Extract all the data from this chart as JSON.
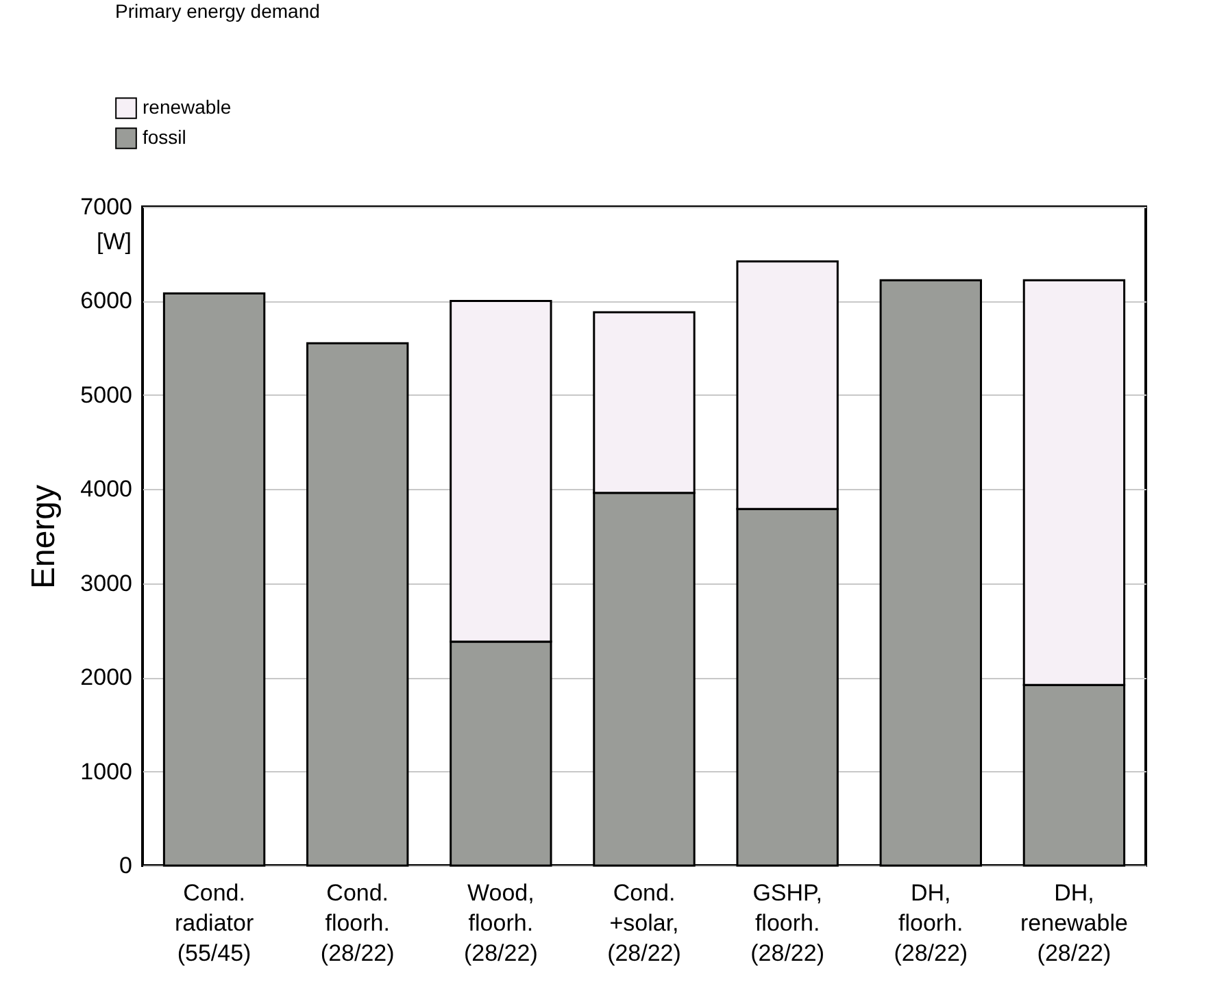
{
  "chart_data": {
    "type": "bar",
    "title": "Primary energy demand",
    "ylabel": "Energy",
    "annotations": [
      "[W]"
    ],
    "categories": [
      "Cond.\nradiator\n(55/45)",
      "Cond.\nfloorh.\n(28/22)",
      "Wood,\nfloorh.\n(28/22)",
      "Cond.\n+solar,\n(28/22)",
      "GSHP,\nfloorh.\n(28/22)",
      "DH,\nfloorh.\n(28/22)",
      "DH,\nrenewable\n(28/22)"
    ],
    "series": [
      {
        "name": "fossil",
        "color": "#9a9c98",
        "values": [
          6080,
          5550,
          2380,
          3960,
          3790,
          6220,
          1920
        ]
      },
      {
        "name": "renewable",
        "color": "#f6f0f6",
        "values": [
          null,
          null,
          3620,
          1920,
          2630,
          null,
          4300
        ]
      }
    ],
    "stacked": true,
    "ylim": [
      0,
      7000
    ],
    "yticks": [
      0,
      1000,
      2000,
      3000,
      4000,
      5000,
      6000,
      7000
    ],
    "grid": "y",
    "legend": "top left"
  }
}
